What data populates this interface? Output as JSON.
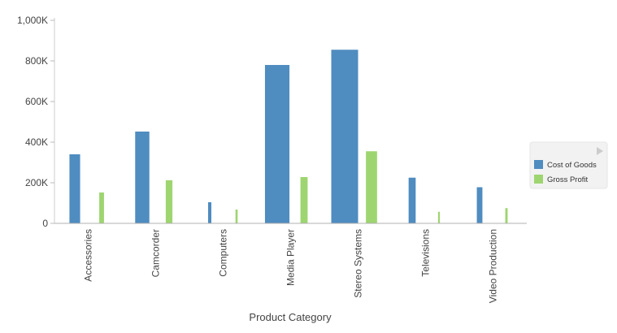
{
  "chart_data": {
    "type": "bar",
    "title": "",
    "xlabel": "Product Category",
    "ylabel": "",
    "categories": [
      "Accessories",
      "Camcorder",
      "Computers",
      "Media Player",
      "Stereo Systems",
      "Televisions",
      "Video Production"
    ],
    "series": [
      {
        "name": "Cost of Goods",
        "color": "#4f8cc0",
        "values": [
          340000,
          452000,
          104000,
          780000,
          855000,
          225000,
          178000
        ]
      },
      {
        "name": "Gross Profit",
        "color": "#9ed570",
        "values": [
          152000,
          212000,
          68000,
          228000,
          355000,
          57000,
          75000
        ]
      }
    ],
    "ylim": [
      0,
      1000000
    ],
    "y_ticks": [
      {
        "value": 0,
        "label": "0"
      },
      {
        "value": 200000,
        "label": "200K"
      },
      {
        "value": 400000,
        "label": "400K"
      },
      {
        "value": 600000,
        "label": "600K"
      },
      {
        "value": 800000,
        "label": "800K"
      },
      {
        "value": 1000000,
        "label": "1,000K"
      }
    ],
    "grid": false,
    "legend_position": "right"
  }
}
